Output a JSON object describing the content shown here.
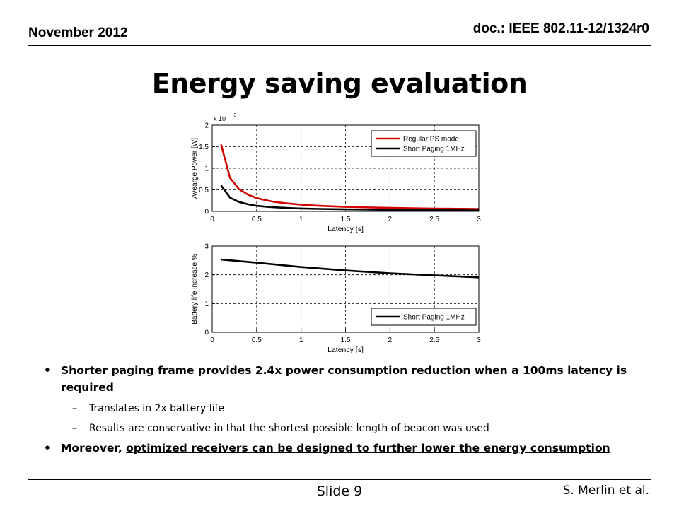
{
  "header": {
    "date": "November 2012",
    "doc_id": "doc.: IEEE 802.11-12/1324r0"
  },
  "title": "Energy saving evaluation",
  "chart_data": [
    {
      "type": "line",
      "ylabel": "Avearge Power [W]",
      "xlabel": "Latency [s]",
      "y_multiplier": "x 10",
      "y_multiplier_exp": "-3",
      "xlim": [
        0,
        3
      ],
      "ylim": [
        0,
        2
      ],
      "x_ticks": [
        "0",
        "0.5",
        "1",
        "1.5",
        "2",
        "2.5",
        "3"
      ],
      "y_ticks": [
        "0",
        "0.5",
        "1",
        "1.5",
        "2"
      ],
      "grid": true,
      "legend_position": "top-right",
      "series": [
        {
          "name": "Regular PS mode",
          "color": "#d40000",
          "x": [
            0.1,
            0.2,
            0.3,
            0.4,
            0.5,
            0.6,
            0.7,
            0.8,
            0.9,
            1.0,
            1.2,
            1.5,
            1.8,
            2.0,
            2.5,
            3.0
          ],
          "y": [
            1.55,
            0.78,
            0.52,
            0.39,
            0.31,
            0.26,
            0.22,
            0.195,
            0.175,
            0.155,
            0.13,
            0.105,
            0.09,
            0.08,
            0.065,
            0.055
          ]
        },
        {
          "name": "Short Paging 1MHz",
          "color": "#000000",
          "x": [
            0.1,
            0.2,
            0.3,
            0.4,
            0.5,
            0.6,
            0.7,
            0.8,
            0.9,
            1.0,
            1.2,
            1.5,
            1.8,
            2.0,
            2.5,
            3.0
          ],
          "y": [
            0.6,
            0.32,
            0.22,
            0.165,
            0.13,
            0.11,
            0.095,
            0.085,
            0.075,
            0.068,
            0.058,
            0.048,
            0.04,
            0.036,
            0.03,
            0.025
          ]
        }
      ]
    },
    {
      "type": "line",
      "ylabel": "Battery life increase %",
      "xlabel": "Latency [s]",
      "xlim": [
        0,
        3
      ],
      "ylim": [
        0,
        3
      ],
      "x_ticks": [
        "0",
        "0.5",
        "1",
        "1.5",
        "2",
        "2.5",
        "3"
      ],
      "y_ticks": [
        "0",
        "1",
        "2",
        "3"
      ],
      "grid": true,
      "legend_position": "bottom-right",
      "series": [
        {
          "name": "Short Paging 1MHz",
          "color": "#000000",
          "x": [
            0.1,
            0.5,
            1.0,
            1.5,
            2.0,
            2.5,
            3.0
          ],
          "y": [
            2.53,
            2.42,
            2.27,
            2.15,
            2.05,
            1.98,
            1.91
          ]
        }
      ]
    }
  ],
  "bullets": {
    "b1": "Shorter paging frame provides 2.4x power consumption  reduction when a 100ms latency is required",
    "b1_sub1": "Translates in 2x battery life",
    "b1_sub2": "Results are conservative in that the shortest possible length of beacon was used",
    "b2_prefix": "Moreover, ",
    "b2_underlined": "optimized receivers can be designed to further lower the energy consumption"
  },
  "symbols": {
    "bullet": "•",
    "dash": "–"
  },
  "footer": {
    "slide": "Slide 9",
    "author": "S. Merlin et al."
  }
}
